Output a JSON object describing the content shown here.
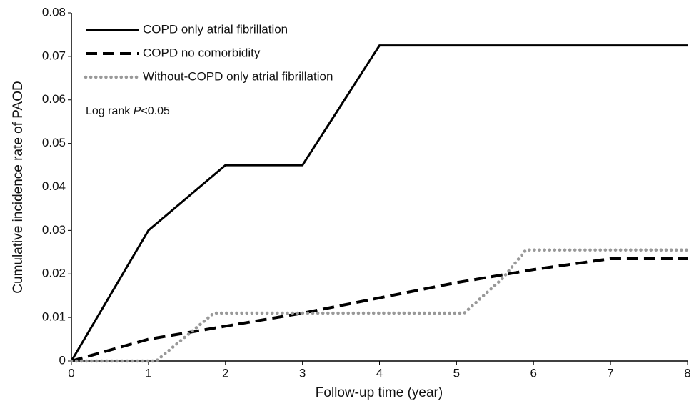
{
  "chart_data": {
    "type": "line",
    "x_label": "Follow-up time (year)",
    "y_label": "Cumulative incidence rate of PAOD",
    "annotation": {
      "text": "Log rank ",
      "italic": "P",
      "rest": "<0.05"
    },
    "xlim": [
      0,
      8
    ],
    "xticks": [
      0,
      1,
      2,
      3,
      4,
      5,
      6,
      7,
      8
    ],
    "ylim": [
      0,
      0.08
    ],
    "yticks": [
      0,
      0.01,
      0.02,
      0.03,
      0.04,
      0.05,
      0.06,
      0.07,
      0.08
    ],
    "series": [
      {
        "name": "COPD only atrial fibrillation",
        "color": "#000000",
        "style": "solid",
        "x": [
          0,
          1,
          2,
          3,
          4,
          8
        ],
        "values": [
          0,
          0.03,
          0.045,
          0.045,
          0.0725,
          0.0725
        ]
      },
      {
        "name": "COPD no comorbidity",
        "color": "#000000",
        "style": "dashed",
        "x": [
          0,
          1,
          2,
          3,
          4,
          5,
          6,
          7,
          8
        ],
        "values": [
          0,
          0.005,
          0.008,
          0.011,
          0.0145,
          0.018,
          0.021,
          0.0235,
          0.0235
        ]
      },
      {
        "name": "Without-COPD only atrial fibrillation",
        "color": "#999999",
        "style": "dotted",
        "x": [
          0,
          1.1,
          1.85,
          5.1,
          5.6,
          5.9,
          8
        ],
        "values": [
          0,
          0,
          0.011,
          0.011,
          0.019,
          0.0255,
          0.0255
        ]
      }
    ]
  }
}
